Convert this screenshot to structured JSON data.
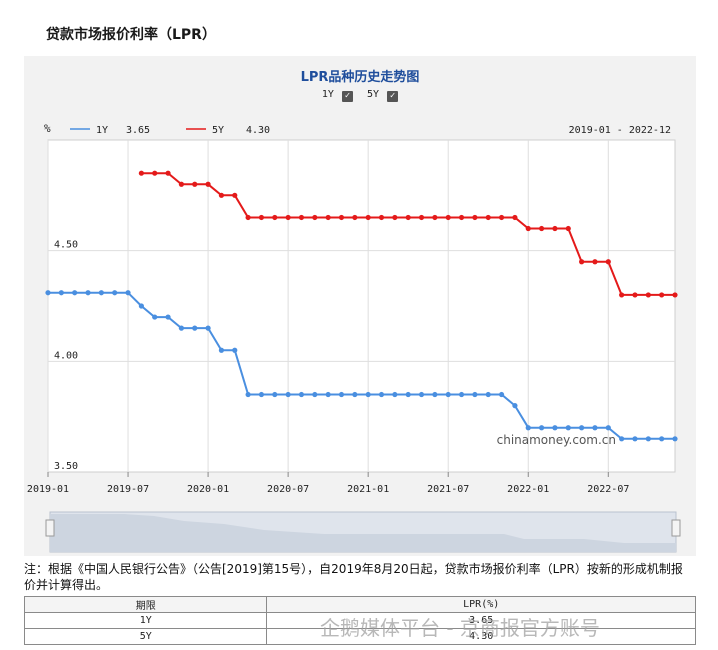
{
  "page": {
    "title": "贷款市场报价利率（LPR）"
  },
  "chart_data": {
    "type": "line",
    "title": "LPR品种历史走势图",
    "unit_label": "%",
    "date_range": "2019-01 - 2022-12",
    "x_ticks": [
      "2019-01",
      "2019-07",
      "2020-01",
      "2020-07",
      "2021-01",
      "2021-07",
      "2022-01",
      "2022-07"
    ],
    "y_ticks": [
      "4.50",
      "4.00",
      "3.50"
    ],
    "ylim": [
      3.5,
      5.0
    ],
    "xlim": [
      "2019-01",
      "2022-12"
    ],
    "grid": true,
    "legend_position": "top-left",
    "watermark": "chinamoney.com.cn",
    "x": [
      "2019-01",
      "2019-02",
      "2019-03",
      "2019-04",
      "2019-05",
      "2019-06",
      "2019-07",
      "2019-08",
      "2019-09",
      "2019-10",
      "2019-11",
      "2019-12",
      "2020-01",
      "2020-02",
      "2020-03",
      "2020-04",
      "2020-05",
      "2020-06",
      "2020-07",
      "2020-08",
      "2020-09",
      "2020-10",
      "2020-11",
      "2020-12",
      "2021-01",
      "2021-02",
      "2021-03",
      "2021-04",
      "2021-05",
      "2021-06",
      "2021-07",
      "2021-08",
      "2021-09",
      "2021-10",
      "2021-11",
      "2021-12",
      "2022-01",
      "2022-02",
      "2022-03",
      "2022-04",
      "2022-05",
      "2022-06",
      "2022-07",
      "2022-08",
      "2022-09",
      "2022-10",
      "2022-11",
      "2022-12"
    ],
    "series": [
      {
        "name": "1Y",
        "latest": "3.65",
        "color": "#4a8fe0",
        "values": [
          4.31,
          4.31,
          4.31,
          4.31,
          4.31,
          4.31,
          4.31,
          4.25,
          4.2,
          4.2,
          4.15,
          4.15,
          4.15,
          4.05,
          4.05,
          3.85,
          3.85,
          3.85,
          3.85,
          3.85,
          3.85,
          3.85,
          3.85,
          3.85,
          3.85,
          3.85,
          3.85,
          3.85,
          3.85,
          3.85,
          3.85,
          3.85,
          3.85,
          3.85,
          3.85,
          3.8,
          3.7,
          3.7,
          3.7,
          3.7,
          3.7,
          3.7,
          3.7,
          3.65,
          3.65,
          3.65,
          3.65,
          3.65
        ]
      },
      {
        "name": "5Y",
        "latest": "4.30",
        "color": "#e41a1a",
        "values": [
          null,
          null,
          null,
          null,
          null,
          null,
          null,
          4.85,
          4.85,
          4.85,
          4.8,
          4.8,
          4.8,
          4.75,
          4.75,
          4.65,
          4.65,
          4.65,
          4.65,
          4.65,
          4.65,
          4.65,
          4.65,
          4.65,
          4.65,
          4.65,
          4.65,
          4.65,
          4.65,
          4.65,
          4.65,
          4.65,
          4.65,
          4.65,
          4.65,
          4.65,
          4.6,
          4.6,
          4.6,
          4.6,
          4.45,
          4.45,
          4.45,
          4.3,
          4.3,
          4.3,
          4.3,
          4.3
        ]
      }
    ]
  },
  "note": "注：根据《中国人民银行公告》（公告[2019]第15号），自2019年8月20日起，贷款市场报价利率（LPR）按新的形成机制报价并计算得出。",
  "table": {
    "headers": [
      "期限",
      "LPR(%)"
    ],
    "rows": [
      [
        "1Y",
        "3.65"
      ],
      [
        "5Y",
        "4.30"
      ]
    ]
  },
  "watermark_text": "企鹅媒体平台 - 京商报官方账号"
}
